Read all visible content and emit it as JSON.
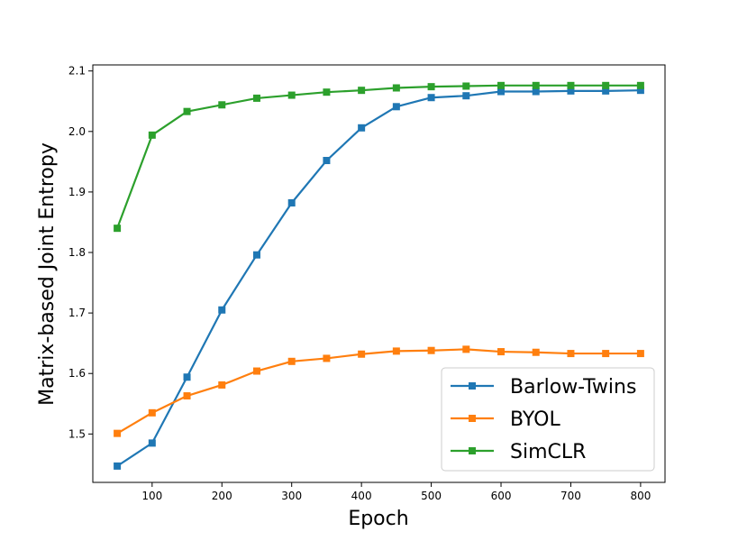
{
  "chart_data": {
    "type": "line",
    "title": "",
    "xlabel": "Epoch",
    "ylabel": "Matrix-based Joint Entropy",
    "xlim": [
      15,
      835
    ],
    "ylim": [
      1.42,
      2.11
    ],
    "xticks": [
      100,
      200,
      300,
      400,
      500,
      600,
      700,
      800
    ],
    "xtick_labels": [
      "100",
      "200",
      "300",
      "400",
      "500",
      "600",
      "700",
      "800"
    ],
    "yticks": [
      1.5,
      1.6,
      1.7,
      1.8,
      1.9,
      2.0,
      2.1
    ],
    "ytick_labels": [
      "1.5",
      "1.6",
      "1.7",
      "1.8",
      "1.9",
      "2.0",
      "2.1"
    ],
    "grid": false,
    "legend_position": "lower-right",
    "marker": "square",
    "x": [
      50,
      100,
      150,
      200,
      250,
      300,
      350,
      400,
      450,
      500,
      550,
      600,
      650,
      700,
      750,
      800
    ],
    "series": [
      {
        "name": "Barlow-Twins",
        "color": "#1f77b4",
        "values": [
          1.447,
          1.485,
          1.594,
          1.705,
          1.796,
          1.882,
          1.952,
          2.006,
          2.041,
          2.056,
          2.059,
          2.066,
          2.066,
          2.067,
          2.067,
          2.068
        ]
      },
      {
        "name": "BYOL",
        "color": "#ff7f0e",
        "values": [
          1.501,
          1.535,
          1.563,
          1.581,
          1.604,
          1.62,
          1.625,
          1.632,
          1.637,
          1.638,
          1.64,
          1.636,
          1.635,
          1.633,
          1.633,
          1.633
        ]
      },
      {
        "name": "SimCLR",
        "color": "#2ca02c",
        "values": [
          1.84,
          1.994,
          2.033,
          2.044,
          2.055,
          2.06,
          2.065,
          2.068,
          2.072,
          2.074,
          2.075,
          2.076,
          2.076,
          2.076,
          2.076,
          2.076
        ]
      }
    ]
  }
}
